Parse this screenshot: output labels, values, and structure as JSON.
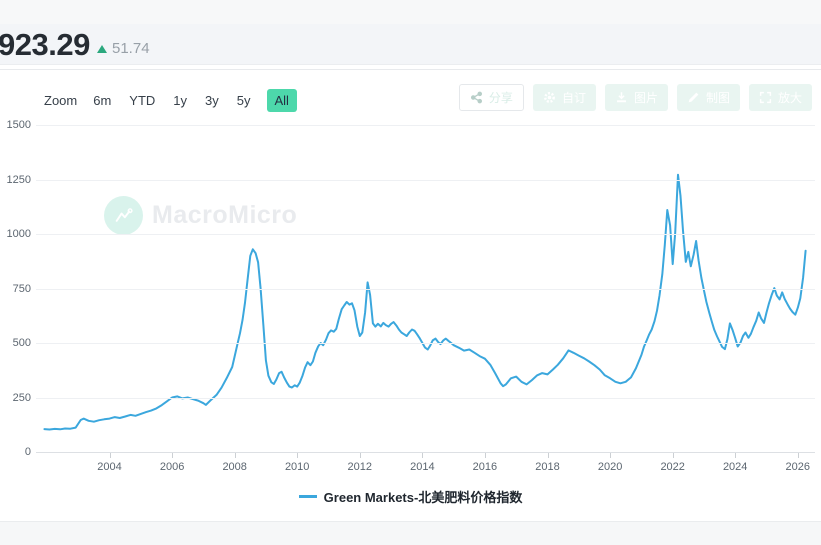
{
  "header": {
    "value": "923.29",
    "change": "51.74",
    "change_direction": "up",
    "accent_up_color": "#2ba87e"
  },
  "toolbar": {
    "zoom_label": "Zoom",
    "ranges": [
      {
        "label": "6m",
        "active": false
      },
      {
        "label": "YTD",
        "active": false
      },
      {
        "label": "1y",
        "active": false
      },
      {
        "label": "3y",
        "active": false
      },
      {
        "label": "5y",
        "active": false
      },
      {
        "label": "All",
        "active": true
      }
    ],
    "active_bg_color": "#4dd8ab"
  },
  "actions": [
    {
      "label": "分享",
      "icon": "share-icon",
      "style": "outline"
    },
    {
      "label": "自订",
      "icon": "gear-icon",
      "style": "filled"
    },
    {
      "label": "图片",
      "icon": "download-icon",
      "style": "filled"
    },
    {
      "label": "制图",
      "icon": "pencil-icon",
      "style": "filled"
    },
    {
      "label": "放大",
      "icon": "expand-icon",
      "style": "filled"
    }
  ],
  "watermark": {
    "text": "MacroMicro"
  },
  "chart_data": {
    "type": "line",
    "title": "",
    "xlabel": "",
    "ylabel": "",
    "grid": "horizontal",
    "legend_position": "bottom",
    "ylim": [
      0,
      1500
    ],
    "xlim": [
      2001.65,
      2026.55
    ],
    "y_ticks": [
      0,
      250,
      500,
      750,
      1000,
      1250,
      1500
    ],
    "x_ticks": [
      2004,
      2006,
      2008,
      2010,
      2012,
      2014,
      2016,
      2018,
      2020,
      2022,
      2024,
      2026
    ],
    "series": [
      {
        "name": "Green Markets-北美肥料价格指数",
        "color": "#3ba7dd",
        "last_value": 923.29,
        "last_change": 51.74,
        "points": [
          [
            2001.92,
            105
          ],
          [
            2002.08,
            103
          ],
          [
            2002.25,
            106
          ],
          [
            2002.42,
            104
          ],
          [
            2002.58,
            108
          ],
          [
            2002.75,
            107
          ],
          [
            2002.92,
            112
          ],
          [
            2003.08,
            147
          ],
          [
            2003.17,
            153
          ],
          [
            2003.33,
            143
          ],
          [
            2003.5,
            139
          ],
          [
            2003.67,
            146
          ],
          [
            2003.83,
            150
          ],
          [
            2004,
            153
          ],
          [
            2004.17,
            160
          ],
          [
            2004.33,
            156
          ],
          [
            2004.5,
            163
          ],
          [
            2004.67,
            170
          ],
          [
            2004.83,
            166
          ],
          [
            2005,
            175
          ],
          [
            2005.17,
            183
          ],
          [
            2005.33,
            190
          ],
          [
            2005.5,
            200
          ],
          [
            2005.67,
            215
          ],
          [
            2005.83,
            232
          ],
          [
            2006,
            250
          ],
          [
            2006.17,
            255
          ],
          [
            2006.33,
            246
          ],
          [
            2006.5,
            250
          ],
          [
            2006.67,
            242
          ],
          [
            2006.83,
            236
          ],
          [
            2007,
            224
          ],
          [
            2007.08,
            216
          ],
          [
            2007.25,
            240
          ],
          [
            2007.42,
            262
          ],
          [
            2007.58,
            295
          ],
          [
            2007.75,
            340
          ],
          [
            2007.92,
            390
          ],
          [
            2008,
            440
          ],
          [
            2008.08,
            490
          ],
          [
            2008.17,
            545
          ],
          [
            2008.25,
            605
          ],
          [
            2008.33,
            685
          ],
          [
            2008.42,
            800
          ],
          [
            2008.5,
            900
          ],
          [
            2008.58,
            930
          ],
          [
            2008.67,
            912
          ],
          [
            2008.75,
            870
          ],
          [
            2008.83,
            750
          ],
          [
            2008.92,
            580
          ],
          [
            2009,
            420
          ],
          [
            2009.08,
            350
          ],
          [
            2009.17,
            320
          ],
          [
            2009.25,
            312
          ],
          [
            2009.33,
            332
          ],
          [
            2009.42,
            362
          ],
          [
            2009.5,
            368
          ],
          [
            2009.58,
            342
          ],
          [
            2009.67,
            318
          ],
          [
            2009.75,
            300
          ],
          [
            2009.83,
            296
          ],
          [
            2009.92,
            306
          ],
          [
            2010,
            300
          ],
          [
            2010.08,
            318
          ],
          [
            2010.17,
            350
          ],
          [
            2010.25,
            388
          ],
          [
            2010.33,
            412
          ],
          [
            2010.42,
            398
          ],
          [
            2010.5,
            415
          ],
          [
            2010.58,
            455
          ],
          [
            2010.67,
            485
          ],
          [
            2010.75,
            500
          ],
          [
            2010.83,
            490
          ],
          [
            2010.92,
            515
          ],
          [
            2011,
            545
          ],
          [
            2011.08,
            558
          ],
          [
            2011.17,
            552
          ],
          [
            2011.25,
            565
          ],
          [
            2011.33,
            610
          ],
          [
            2011.42,
            655
          ],
          [
            2011.5,
            672
          ],
          [
            2011.58,
            688
          ],
          [
            2011.67,
            676
          ],
          [
            2011.75,
            682
          ],
          [
            2011.83,
            650
          ],
          [
            2011.92,
            575
          ],
          [
            2012,
            532
          ],
          [
            2012.08,
            548
          ],
          [
            2012.17,
            640
          ],
          [
            2012.25,
            778
          ],
          [
            2012.33,
            720
          ],
          [
            2012.42,
            590
          ],
          [
            2012.5,
            575
          ],
          [
            2012.58,
            588
          ],
          [
            2012.67,
            576
          ],
          [
            2012.75,
            592
          ],
          [
            2012.83,
            582
          ],
          [
            2012.92,
            575
          ],
          [
            2013,
            588
          ],
          [
            2013.08,
            596
          ],
          [
            2013.17,
            580
          ],
          [
            2013.25,
            562
          ],
          [
            2013.33,
            548
          ],
          [
            2013.42,
            540
          ],
          [
            2013.5,
            532
          ],
          [
            2013.58,
            548
          ],
          [
            2013.67,
            562
          ],
          [
            2013.75,
            556
          ],
          [
            2013.83,
            540
          ],
          [
            2013.92,
            520
          ],
          [
            2014,
            500
          ],
          [
            2014.08,
            480
          ],
          [
            2014.17,
            470
          ],
          [
            2014.25,
            488
          ],
          [
            2014.33,
            512
          ],
          [
            2014.42,
            520
          ],
          [
            2014.5,
            505
          ],
          [
            2014.58,
            495
          ],
          [
            2014.67,
            512
          ],
          [
            2014.75,
            520
          ],
          [
            2014.83,
            510
          ],
          [
            2014.92,
            500
          ],
          [
            2015,
            490
          ],
          [
            2015.17,
            478
          ],
          [
            2015.33,
            465
          ],
          [
            2015.5,
            470
          ],
          [
            2015.67,
            455
          ],
          [
            2015.83,
            440
          ],
          [
            2016,
            428
          ],
          [
            2016.17,
            400
          ],
          [
            2016.33,
            360
          ],
          [
            2016.5,
            315
          ],
          [
            2016.58,
            302
          ],
          [
            2016.67,
            310
          ],
          [
            2016.83,
            338
          ],
          [
            2017,
            346
          ],
          [
            2017.17,
            322
          ],
          [
            2017.33,
            310
          ],
          [
            2017.5,
            330
          ],
          [
            2017.67,
            352
          ],
          [
            2017.83,
            362
          ],
          [
            2018,
            356
          ],
          [
            2018.17,
            378
          ],
          [
            2018.33,
            400
          ],
          [
            2018.5,
            430
          ],
          [
            2018.67,
            466
          ],
          [
            2018.83,
            455
          ],
          [
            2019,
            442
          ],
          [
            2019.17,
            430
          ],
          [
            2019.33,
            415
          ],
          [
            2019.5,
            398
          ],
          [
            2019.67,
            378
          ],
          [
            2019.83,
            352
          ],
          [
            2020,
            338
          ],
          [
            2020.17,
            322
          ],
          [
            2020.33,
            315
          ],
          [
            2020.5,
            322
          ],
          [
            2020.67,
            342
          ],
          [
            2020.83,
            385
          ],
          [
            2021,
            445
          ],
          [
            2021.08,
            482
          ],
          [
            2021.17,
            512
          ],
          [
            2021.25,
            540
          ],
          [
            2021.33,
            562
          ],
          [
            2021.42,
            600
          ],
          [
            2021.5,
            648
          ],
          [
            2021.58,
            718
          ],
          [
            2021.67,
            815
          ],
          [
            2021.75,
            950
          ],
          [
            2021.83,
            1110
          ],
          [
            2021.92,
            1040
          ],
          [
            2022,
            862
          ],
          [
            2022.08,
            1005
          ],
          [
            2022.17,
            1272
          ],
          [
            2022.25,
            1175
          ],
          [
            2022.33,
            1015
          ],
          [
            2022.42,
            872
          ],
          [
            2022.5,
            918
          ],
          [
            2022.58,
            852
          ],
          [
            2022.67,
            905
          ],
          [
            2022.75,
            968
          ],
          [
            2022.83,
            878
          ],
          [
            2022.92,
            798
          ],
          [
            2023,
            742
          ],
          [
            2023.08,
            688
          ],
          [
            2023.17,
            638
          ],
          [
            2023.25,
            598
          ],
          [
            2023.33,
            560
          ],
          [
            2023.42,
            530
          ],
          [
            2023.5,
            506
          ],
          [
            2023.58,
            482
          ],
          [
            2023.67,
            472
          ],
          [
            2023.75,
            518
          ],
          [
            2023.83,
            590
          ],
          [
            2023.92,
            558
          ],
          [
            2024,
            522
          ],
          [
            2024.08,
            484
          ],
          [
            2024.17,
            502
          ],
          [
            2024.25,
            532
          ],
          [
            2024.33,
            548
          ],
          [
            2024.42,
            524
          ],
          [
            2024.5,
            542
          ],
          [
            2024.58,
            572
          ],
          [
            2024.67,
            602
          ],
          [
            2024.75,
            640
          ],
          [
            2024.83,
            612
          ],
          [
            2024.92,
            592
          ],
          [
            2025,
            640
          ],
          [
            2025.08,
            682
          ],
          [
            2025.17,
            722
          ],
          [
            2025.25,
            752
          ],
          [
            2025.33,
            718
          ],
          [
            2025.42,
            700
          ],
          [
            2025.5,
            732
          ],
          [
            2025.58,
            702
          ],
          [
            2025.67,
            678
          ],
          [
            2025.75,
            658
          ],
          [
            2025.83,
            642
          ],
          [
            2025.92,
            630
          ],
          [
            2026,
            662
          ],
          [
            2026.08,
            705
          ],
          [
            2026.17,
            800
          ],
          [
            2026.25,
            923.29
          ]
        ]
      }
    ]
  }
}
